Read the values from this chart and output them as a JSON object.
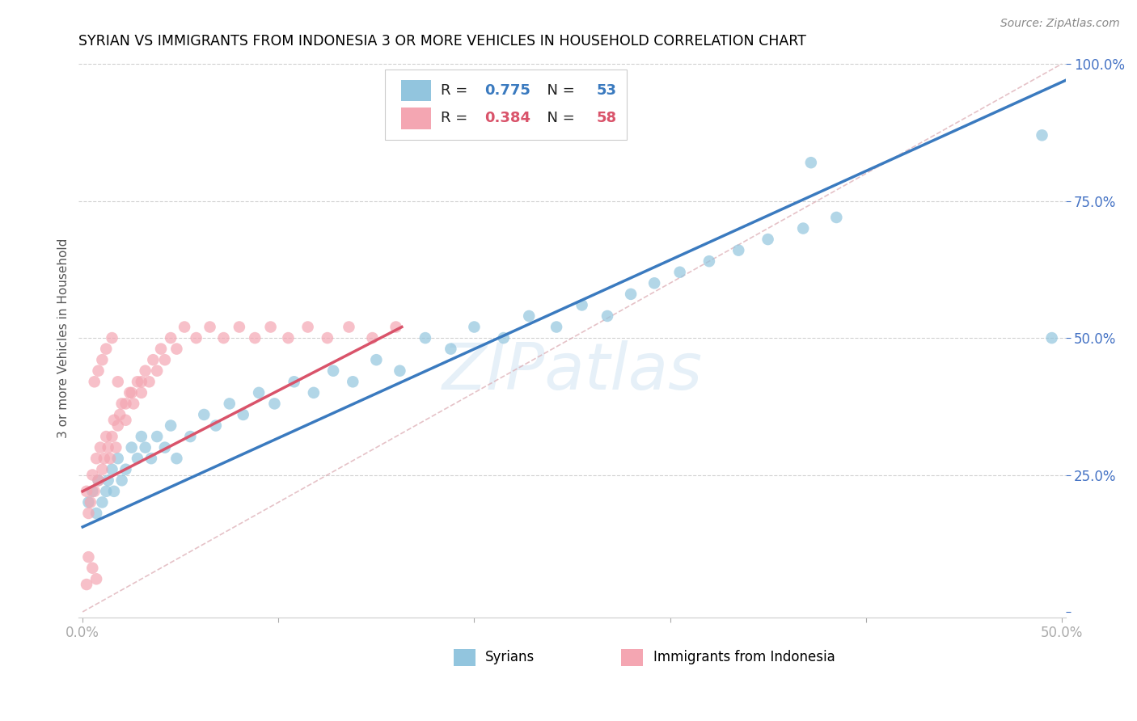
{
  "title": "SYRIAN VS IMMIGRANTS FROM INDONESIA 3 OR MORE VEHICLES IN HOUSEHOLD CORRELATION CHART",
  "source": "Source: ZipAtlas.com",
  "ylabel": "3 or more Vehicles in Household",
  "xlim": [
    0.0,
    0.5
  ],
  "ylim": [
    0.0,
    1.0
  ],
  "xticks": [
    0.0,
    0.1,
    0.2,
    0.3,
    0.4,
    0.5
  ],
  "yticks": [
    0.0,
    0.25,
    0.5,
    0.75,
    1.0
  ],
  "xticklabels": [
    "0.0%",
    "",
    "",
    "",
    "",
    "50.0%"
  ],
  "yticklabels": [
    "",
    "25.0%",
    "50.0%",
    "75.0%",
    "100.0%"
  ],
  "blue_R": 0.775,
  "blue_N": 53,
  "pink_R": 0.384,
  "pink_N": 58,
  "blue_color": "#92c5de",
  "pink_color": "#f4a6b2",
  "blue_line_color": "#3a7abf",
  "pink_line_color": "#d9536a",
  "blue_label": "Syrians",
  "pink_label": "Immigrants from Indonesia",
  "watermark_text": "ZIPatlas",
  "tick_color": "#4472c4",
  "legend_edge_color": "#cccccc",
  "grid_color": "#cccccc",
  "ref_line_color": "#cccccc",
  "blue_x": [
    0.003,
    0.005,
    0.007,
    0.008,
    0.01,
    0.012,
    0.013,
    0.015,
    0.016,
    0.018,
    0.02,
    0.022,
    0.025,
    0.028,
    0.03,
    0.032,
    0.035,
    0.038,
    0.042,
    0.045,
    0.048,
    0.055,
    0.062,
    0.068,
    0.075,
    0.082,
    0.09,
    0.098,
    0.108,
    0.118,
    0.128,
    0.138,
    0.15,
    0.162,
    0.175,
    0.188,
    0.2,
    0.215,
    0.228,
    0.242,
    0.255,
    0.268,
    0.28,
    0.292,
    0.305,
    0.32,
    0.335,
    0.35,
    0.368,
    0.385,
    0.49,
    0.495,
    0.372
  ],
  "blue_y": [
    0.2,
    0.22,
    0.18,
    0.24,
    0.2,
    0.22,
    0.24,
    0.26,
    0.22,
    0.28,
    0.24,
    0.26,
    0.3,
    0.28,
    0.32,
    0.3,
    0.28,
    0.32,
    0.3,
    0.34,
    0.28,
    0.32,
    0.36,
    0.34,
    0.38,
    0.36,
    0.4,
    0.38,
    0.42,
    0.4,
    0.44,
    0.42,
    0.46,
    0.44,
    0.5,
    0.48,
    0.52,
    0.5,
    0.54,
    0.52,
    0.56,
    0.54,
    0.58,
    0.6,
    0.62,
    0.64,
    0.66,
    0.68,
    0.7,
    0.72,
    0.87,
    0.5,
    0.82
  ],
  "pink_x": [
    0.002,
    0.003,
    0.004,
    0.005,
    0.006,
    0.007,
    0.008,
    0.009,
    0.01,
    0.011,
    0.012,
    0.013,
    0.014,
    0.015,
    0.016,
    0.017,
    0.018,
    0.019,
    0.02,
    0.022,
    0.024,
    0.026,
    0.028,
    0.03,
    0.032,
    0.034,
    0.036,
    0.038,
    0.04,
    0.042,
    0.045,
    0.048,
    0.052,
    0.058,
    0.065,
    0.072,
    0.08,
    0.088,
    0.096,
    0.105,
    0.115,
    0.125,
    0.136,
    0.148,
    0.16,
    0.006,
    0.008,
    0.01,
    0.012,
    0.015,
    0.018,
    0.022,
    0.025,
    0.03,
    0.003,
    0.005,
    0.007,
    0.002
  ],
  "pink_y": [
    0.22,
    0.18,
    0.2,
    0.25,
    0.22,
    0.28,
    0.24,
    0.3,
    0.26,
    0.28,
    0.32,
    0.3,
    0.28,
    0.32,
    0.35,
    0.3,
    0.34,
    0.36,
    0.38,
    0.35,
    0.4,
    0.38,
    0.42,
    0.4,
    0.44,
    0.42,
    0.46,
    0.44,
    0.48,
    0.46,
    0.5,
    0.48,
    0.52,
    0.5,
    0.52,
    0.5,
    0.52,
    0.5,
    0.52,
    0.5,
    0.52,
    0.5,
    0.52,
    0.5,
    0.52,
    0.42,
    0.44,
    0.46,
    0.48,
    0.5,
    0.42,
    0.38,
    0.4,
    0.42,
    0.1,
    0.08,
    0.06,
    0.05
  ],
  "blue_line_x0": 0.0,
  "blue_line_x1": 0.505,
  "blue_line_y0": 0.155,
  "blue_line_y1": 0.975,
  "pink_line_x0": 0.0,
  "pink_line_x1": 0.163,
  "pink_line_y0": 0.22,
  "pink_line_y1": 0.52
}
